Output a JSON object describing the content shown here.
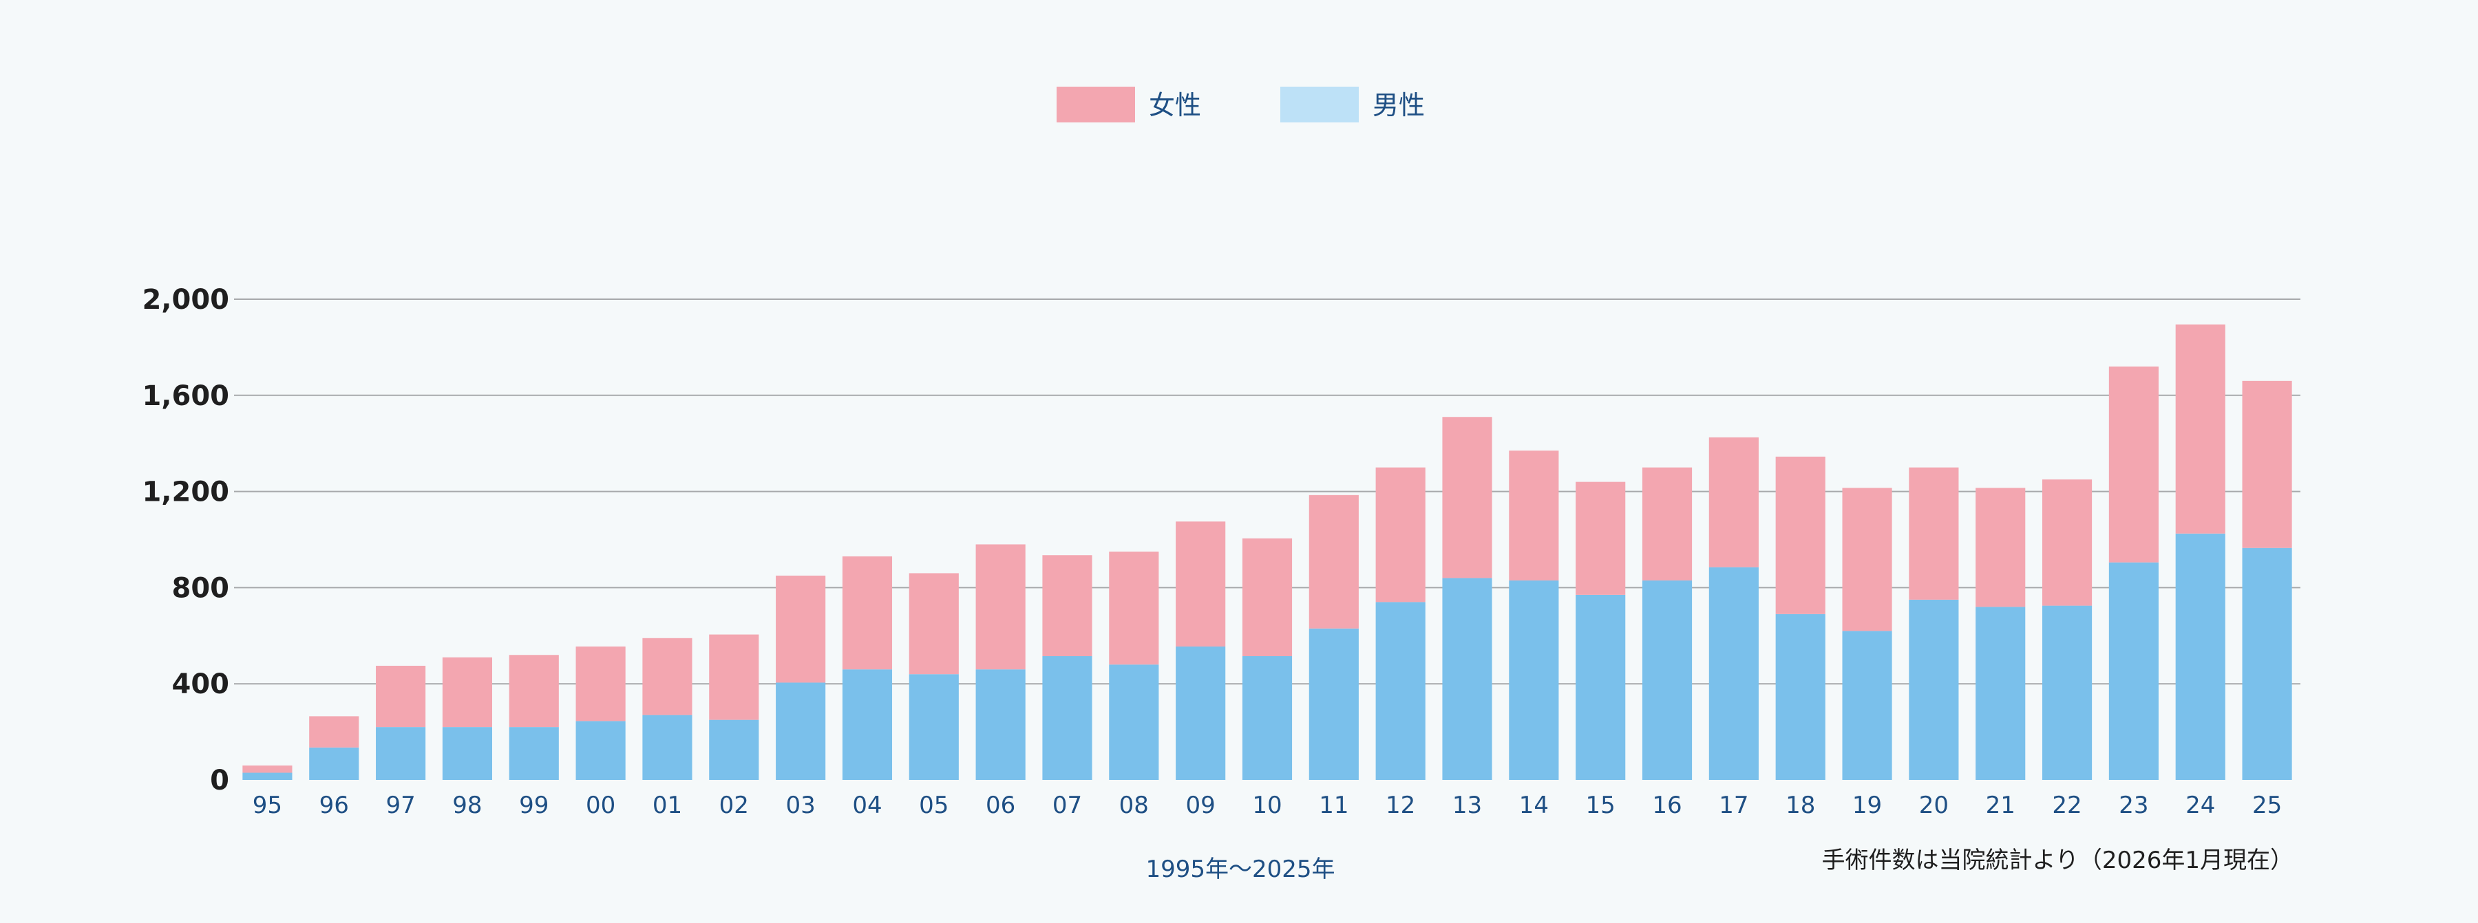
{
  "chart_data": {
    "type": "bar",
    "stacked": true,
    "categories": [
      "95",
      "96",
      "97",
      "98",
      "99",
      "00",
      "01",
      "02",
      "03",
      "04",
      "05",
      "06",
      "07",
      "08",
      "09",
      "10",
      "11",
      "12",
      "13",
      "14",
      "15",
      "16",
      "17",
      "18",
      "19",
      "20",
      "21",
      "22",
      "23",
      "24",
      "25"
    ],
    "series": [
      {
        "name": "男性",
        "color": "#7ac0eb",
        "values": [
          30,
          135,
          220,
          220,
          220,
          245,
          270,
          250,
          405,
          460,
          440,
          460,
          515,
          480,
          555,
          515,
          630,
          740,
          840,
          830,
          770,
          830,
          885,
          690,
          620,
          750,
          720,
          725,
          905,
          1025,
          965
        ]
      },
      {
        "name": "女性",
        "color": "#f3a6b0",
        "values": [
          30,
          130,
          255,
          290,
          300,
          310,
          320,
          355,
          445,
          470,
          420,
          520,
          420,
          470,
          520,
          490,
          555,
          560,
          670,
          540,
          470,
          470,
          540,
          655,
          595,
          550,
          495,
          525,
          815,
          870,
          695
        ]
      }
    ],
    "legend_order": [
      "女性",
      "男性"
    ],
    "legend_swatch_colors": [
      "#f3a6b0",
      "#bde1f7"
    ],
    "xlabel": "1995年〜2025年",
    "ylabel": "",
    "ylim": [
      0,
      2000
    ],
    "yticks": [
      "0",
      "400",
      "800",
      "1,200",
      "1,600",
      "2,000"
    ],
    "ytick_values": [
      0,
      400,
      800,
      1200,
      1600,
      2000
    ],
    "grid": true,
    "legend_position": "top-center",
    "note": "手術件数は当院統計より（2026年1月現在）"
  }
}
